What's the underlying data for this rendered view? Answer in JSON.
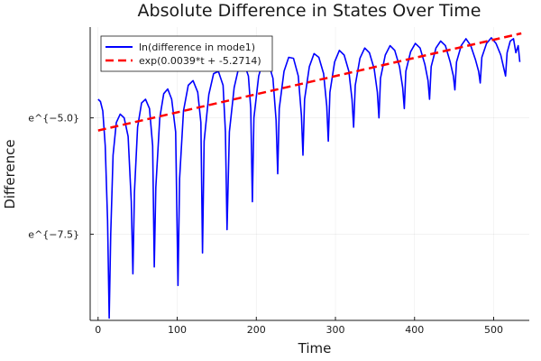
{
  "chart_data": {
    "type": "line",
    "title": "Absolute Difference in States Over Time",
    "xlabel": "Time",
    "ylabel": "Difference",
    "xlim": [
      -10,
      545
    ],
    "ylim": [
      -9.35,
      -3.05
    ],
    "x_ticks": [
      0,
      100,
      200,
      300,
      400,
      500
    ],
    "x_tick_labels": [
      "0",
      "100",
      "200",
      "300",
      "400",
      "500"
    ],
    "y_ticks": [
      -5.0,
      -7.5
    ],
    "y_tick_labels": [
      "e^{−5.0}",
      "e^{−7.5}"
    ],
    "grid": true,
    "legend_position": "top-left",
    "series": [
      {
        "name": "ln(difference in mode1)",
        "color": "#0000ff",
        "style": "solid",
        "x": [
          0,
          3,
          6,
          9,
          12,
          14,
          16,
          19,
          23,
          28,
          33,
          38,
          42,
          44,
          46,
          50,
          55,
          60,
          65,
          69,
          71,
          73,
          78,
          83,
          88,
          93,
          98,
          101,
          103,
          108,
          114,
          120,
          126,
          130,
          132,
          134,
          140,
          146,
          152,
          158,
          161,
          163,
          166,
          172,
          178,
          184,
          190,
          193,
          195,
          197,
          203,
          209,
          215,
          221,
          225,
          227,
          229,
          235,
          241,
          247,
          253,
          257,
          259,
          261,
          267,
          273,
          279,
          285,
          289,
          291,
          293,
          299,
          305,
          311,
          317,
          321,
          323,
          325,
          331,
          337,
          343,
          349,
          353,
          355,
          357,
          363,
          369,
          375,
          381,
          385,
          387,
          389,
          395,
          401,
          407,
          413,
          417,
          419,
          421,
          427,
          433,
          439,
          445,
          449,
          451,
          453,
          459,
          465,
          471,
          477,
          481,
          483,
          485,
          491,
          497,
          503,
          509,
          513,
          515,
          517,
          521,
          525,
          528,
          531,
          533
        ],
        "y": [
          -4.6,
          -4.65,
          -4.85,
          -5.6,
          -7.2,
          -9.3,
          -7.5,
          -5.8,
          -5.1,
          -4.92,
          -5.0,
          -5.4,
          -6.8,
          -8.35,
          -6.6,
          -5.2,
          -4.68,
          -4.6,
          -4.8,
          -5.6,
          -8.2,
          -6.5,
          -5.0,
          -4.48,
          -4.38,
          -4.6,
          -5.3,
          -8.6,
          -6.3,
          -4.85,
          -4.3,
          -4.2,
          -4.45,
          -5.1,
          -7.9,
          -5.5,
          -4.5,
          -4.05,
          -4.0,
          -4.3,
          -5.3,
          -7.4,
          -5.3,
          -4.35,
          -3.9,
          -3.8,
          -4.1,
          -4.8,
          -6.8,
          -5.0,
          -4.1,
          -3.75,
          -3.8,
          -4.15,
          -5.05,
          -6.2,
          -4.8,
          -4.0,
          -3.7,
          -3.72,
          -4.1,
          -4.95,
          -5.8,
          -4.6,
          -3.9,
          -3.62,
          -3.7,
          -4.05,
          -4.75,
          -5.5,
          -4.45,
          -3.8,
          -3.55,
          -3.65,
          -4.0,
          -4.6,
          -5.2,
          -4.3,
          -3.72,
          -3.5,
          -3.6,
          -3.95,
          -4.45,
          -5.0,
          -4.15,
          -3.65,
          -3.45,
          -3.55,
          -3.9,
          -4.35,
          -4.8,
          -4.0,
          -3.58,
          -3.4,
          -3.5,
          -3.85,
          -4.2,
          -4.6,
          -3.9,
          -3.5,
          -3.35,
          -3.45,
          -3.8,
          -4.1,
          -4.4,
          -3.8,
          -3.45,
          -3.3,
          -3.45,
          -3.75,
          -4.0,
          -4.25,
          -3.7,
          -3.4,
          -3.28,
          -3.4,
          -3.65,
          -3.95,
          -4.1,
          -3.6,
          -3.35,
          -3.3,
          -3.6,
          -3.45,
          -3.8
        ]
      },
      {
        "name": "exp(0.0039*t + -5.2714)",
        "color": "#ff0000",
        "style": "dashed",
        "x": [
          0,
          535
        ],
        "y": [
          -5.2714,
          -3.185
        ]
      }
    ]
  }
}
